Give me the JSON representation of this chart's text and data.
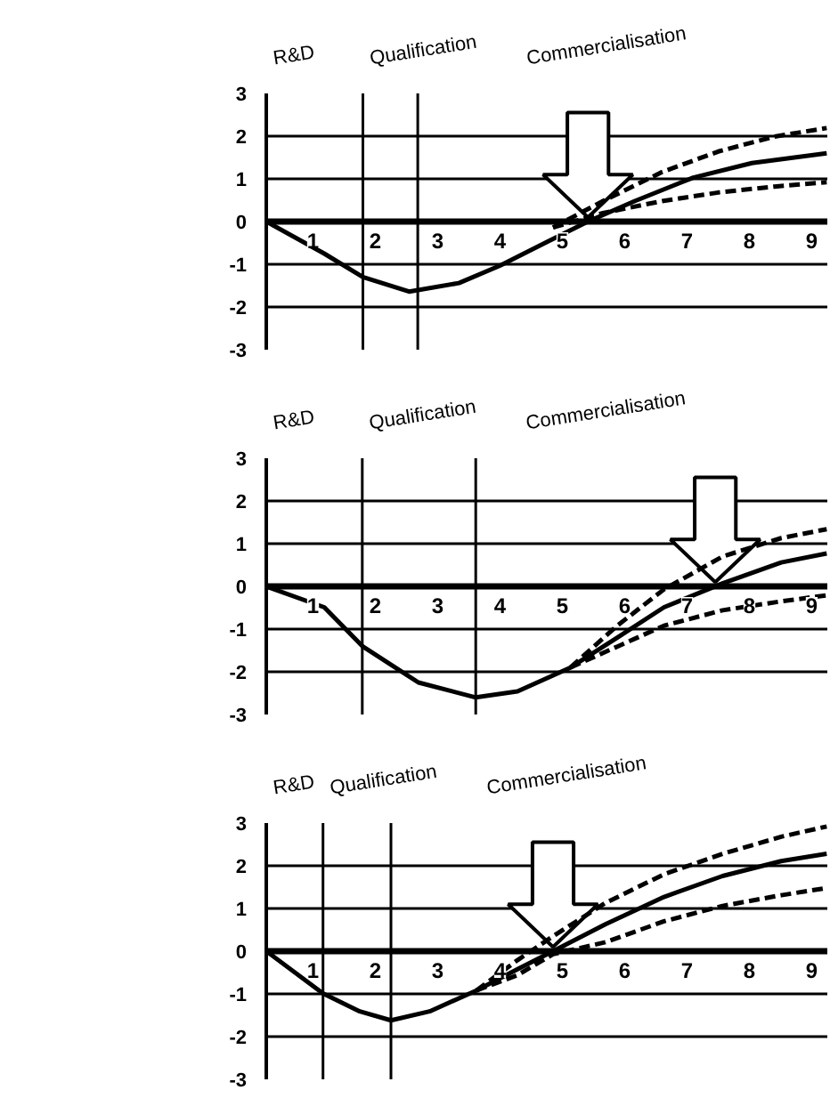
{
  "chart_data": [
    {
      "type": "line",
      "xlim": [
        0.25,
        9.25
      ],
      "xticks": [
        1,
        2,
        3,
        4,
        5,
        6,
        7,
        8,
        9
      ],
      "ylim": [
        -3,
        3
      ],
      "yticks": [
        -3,
        -2,
        -1,
        0,
        1,
        2,
        3
      ],
      "grid": "y",
      "annotations": [
        "R&D",
        "Qualification",
        "Commercialisation"
      ],
      "ref_lines": [
        {
          "axis": "x",
          "value": 1.8
        },
        {
          "axis": "x",
          "value": 2.68
        }
      ],
      "series": [
        {
          "color": "#000000",
          "line_style": "solid",
          "x": [
            0.25,
            1.18,
            1.8,
            2.54,
            3.34,
            4.0,
            4.75,
            5.41,
            6.16,
            7.1,
            8.04,
            9.24
          ],
          "values": [
            0,
            -0.75,
            -1.3,
            -1.64,
            -1.44,
            -1.03,
            -0.48,
            0,
            0.48,
            1.03,
            1.37,
            1.6
          ]
        },
        {
          "color": "#000000",
          "line_style": "dashed",
          "x": [
            4.85,
            5.65,
            6.6,
            7.5,
            8.4,
            9.24
          ],
          "values": [
            -0.14,
            0.48,
            1.16,
            1.64,
            1.99,
            2.19
          ]
        },
        {
          "color": "#000000",
          "line_style": "dashed",
          "x": [
            4.85,
            5.65,
            6.6,
            7.5,
            8.4,
            9.24
          ],
          "values": [
            -0.14,
            0.2,
            0.48,
            0.68,
            0.82,
            0.92
          ]
        }
      ]
    },
    {
      "type": "line",
      "xlim": [
        0.25,
        9.25
      ],
      "xticks": [
        1,
        2,
        3,
        4,
        5,
        6,
        7,
        8,
        9
      ],
      "ylim": [
        -3,
        3
      ],
      "yticks": [
        -3,
        -2,
        -1,
        0,
        1,
        2,
        3
      ],
      "grid": "y",
      "annotations": [
        "R&D",
        "Qualification",
        "Commercialisation"
      ],
      "ref_lines": [
        {
          "axis": "x",
          "value": 1.79
        },
        {
          "axis": "x",
          "value": 3.61
        }
      ],
      "series": [
        {
          "color": "#000000",
          "line_style": "solid",
          "x": [
            0.25,
            1.18,
            1.8,
            2.69,
            3.61,
            4.28,
            5.13,
            5.88,
            6.63,
            7.57,
            8.51,
            9.24
          ],
          "values": [
            0,
            -0.49,
            -1.41,
            -2.25,
            -2.6,
            -2.46,
            -1.9,
            -1.2,
            -0.49,
            0.07,
            0.56,
            0.77
          ]
        },
        {
          "color": "#000000",
          "line_style": "dashed",
          "x": [
            5.13,
            5.88,
            6.63,
            7.57,
            8.51,
            9.24
          ],
          "values": [
            -1.9,
            -0.92,
            -0.07,
            0.7,
            1.13,
            1.34
          ]
        },
        {
          "color": "#000000",
          "line_style": "dashed",
          "x": [
            5.13,
            5.88,
            6.63,
            7.57,
            8.51,
            9.24
          ],
          "values": [
            -1.9,
            -1.41,
            -0.92,
            -0.56,
            -0.35,
            -0.21
          ]
        }
      ]
    },
    {
      "type": "line",
      "xlim": [
        0.25,
        9.25
      ],
      "xticks": [
        1,
        2,
        3,
        4,
        5,
        6,
        7,
        8,
        9
      ],
      "ylim": [
        -3,
        3
      ],
      "yticks": [
        -3,
        -2,
        -1,
        0,
        1,
        2,
        3
      ],
      "grid": "y",
      "annotations": [
        "R&D",
        "Qualification",
        "Commercialisation"
      ],
      "ref_lines": [
        {
          "axis": "x",
          "value": 1.16
        },
        {
          "axis": "x",
          "value": 2.25
        }
      ],
      "series": [
        {
          "color": "#000000",
          "line_style": "solid",
          "x": [
            0.25,
            1.16,
            1.75,
            2.25,
            2.87,
            3.62,
            4.28,
            4.85,
            5.69,
            6.63,
            7.57,
            8.51,
            9.24
          ],
          "values": [
            0,
            -0.99,
            -1.41,
            -1.62,
            -1.41,
            -0.92,
            -0.42,
            0,
            0.63,
            1.27,
            1.76,
            2.11,
            2.28
          ]
        },
        {
          "color": "#000000",
          "line_style": "dashed",
          "x": [
            3.62,
            4.28,
            4.85,
            5.69,
            6.63,
            7.57,
            8.51,
            9.24
          ],
          "values": [
            -0.92,
            -0.21,
            0.35,
            1.13,
            1.8,
            2.28,
            2.68,
            2.92
          ]
        },
        {
          "color": "#000000",
          "line_style": "dashed",
          "x": [
            3.62,
            4.28,
            4.85,
            5.69,
            6.63,
            7.57,
            8.51,
            9.24
          ],
          "values": [
            -0.92,
            -0.56,
            -0.07,
            0.21,
            0.7,
            1.06,
            1.31,
            1.48
          ]
        }
      ]
    }
  ]
}
